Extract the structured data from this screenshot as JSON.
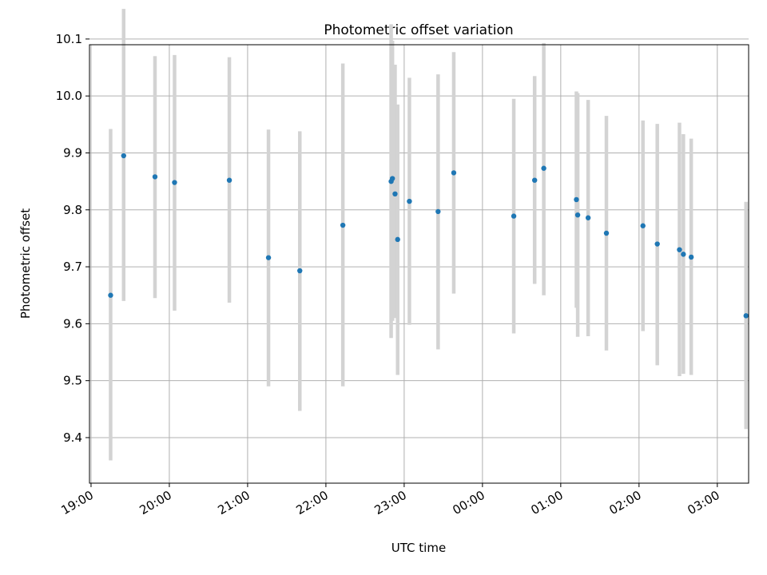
{
  "chart_data": {
    "type": "scatter",
    "title": "Photometric offset variation",
    "xlabel": "UTC time",
    "ylabel": "Photometric offset",
    "x_tick_labels": [
      "19:00",
      "20:00",
      "21:00",
      "22:00",
      "23:00",
      "00:00",
      "01:00",
      "02:00",
      "03:00"
    ],
    "y_tick_labels": [
      "9.4",
      "9.5",
      "9.6",
      "9.7",
      "9.8",
      "9.9",
      "10.0",
      "10.1"
    ],
    "xlim": [
      "19:00 -0.02h",
      "03:24"
    ],
    "ylim": [
      9.32,
      10.09
    ],
    "grid": true,
    "colors": {
      "points": "#1f77b4",
      "errorbars": "#d3d3d3",
      "grid": "#b0b0b0"
    },
    "points": [
      {
        "x": "19:15",
        "y": 9.65,
        "low": 9.36,
        "high": 9.942
      },
      {
        "x": "19:25",
        "y": 9.895,
        "low": 9.64,
        "high": 10.153
      },
      {
        "x": "19:49",
        "y": 9.858,
        "low": 9.645,
        "high": 10.07
      },
      {
        "x": "20:04",
        "y": 9.848,
        "low": 9.623,
        "high": 10.072
      },
      {
        "x": "20:46",
        "y": 9.852,
        "low": 9.637,
        "high": 10.068
      },
      {
        "x": "21:16",
        "y": 9.716,
        "low": 9.49,
        "high": 9.941
      },
      {
        "x": "21:40",
        "y": 9.693,
        "low": 9.447,
        "high": 9.938
      },
      {
        "x": "22:13",
        "y": 9.773,
        "low": 9.49,
        "high": 10.057
      },
      {
        "x": "22:50",
        "y": 9.85,
        "low": 9.575,
        "high": 10.126
      },
      {
        "x": "22:51",
        "y": 9.855,
        "low": 9.605,
        "high": 10.097
      },
      {
        "x": "22:53",
        "y": 9.828,
        "low": 9.61,
        "high": 10.055
      },
      {
        "x": "22:55",
        "y": 9.748,
        "low": 9.51,
        "high": 9.985
      },
      {
        "x": "23:04",
        "y": 9.815,
        "low": 9.598,
        "high": 10.032
      },
      {
        "x": "23:26",
        "y": 9.797,
        "low": 9.555,
        "high": 10.038
      },
      {
        "x": "23:38",
        "y": 9.865,
        "low": 9.653,
        "high": 10.077
      },
      {
        "x": "00:24",
        "y": 9.789,
        "low": 9.583,
        "high": 9.995
      },
      {
        "x": "00:40",
        "y": 9.852,
        "low": 9.67,
        "high": 10.035
      },
      {
        "x": "00:47",
        "y": 9.873,
        "low": 9.65,
        "high": 10.093
      },
      {
        "x": "01:12",
        "y": 9.818,
        "low": 9.628,
        "high": 10.008
      },
      {
        "x": "01:13",
        "y": 9.791,
        "low": 9.577,
        "high": 10.005
      },
      {
        "x": "01:21",
        "y": 9.786,
        "low": 9.578,
        "high": 9.993
      },
      {
        "x": "01:35",
        "y": 9.759,
        "low": 9.553,
        "high": 9.965
      },
      {
        "x": "02:03",
        "y": 9.772,
        "low": 9.587,
        "high": 9.957
      },
      {
        "x": "02:14",
        "y": 9.74,
        "low": 9.527,
        "high": 9.951
      },
      {
        "x": "02:31",
        "y": 9.73,
        "low": 9.508,
        "high": 9.953
      },
      {
        "x": "02:34",
        "y": 9.722,
        "low": 9.512,
        "high": 9.933
      },
      {
        "x": "02:40",
        "y": 9.717,
        "low": 9.51,
        "high": 9.925
      },
      {
        "x": "03:22",
        "y": 9.614,
        "low": 9.415,
        "high": 9.814
      }
    ]
  }
}
